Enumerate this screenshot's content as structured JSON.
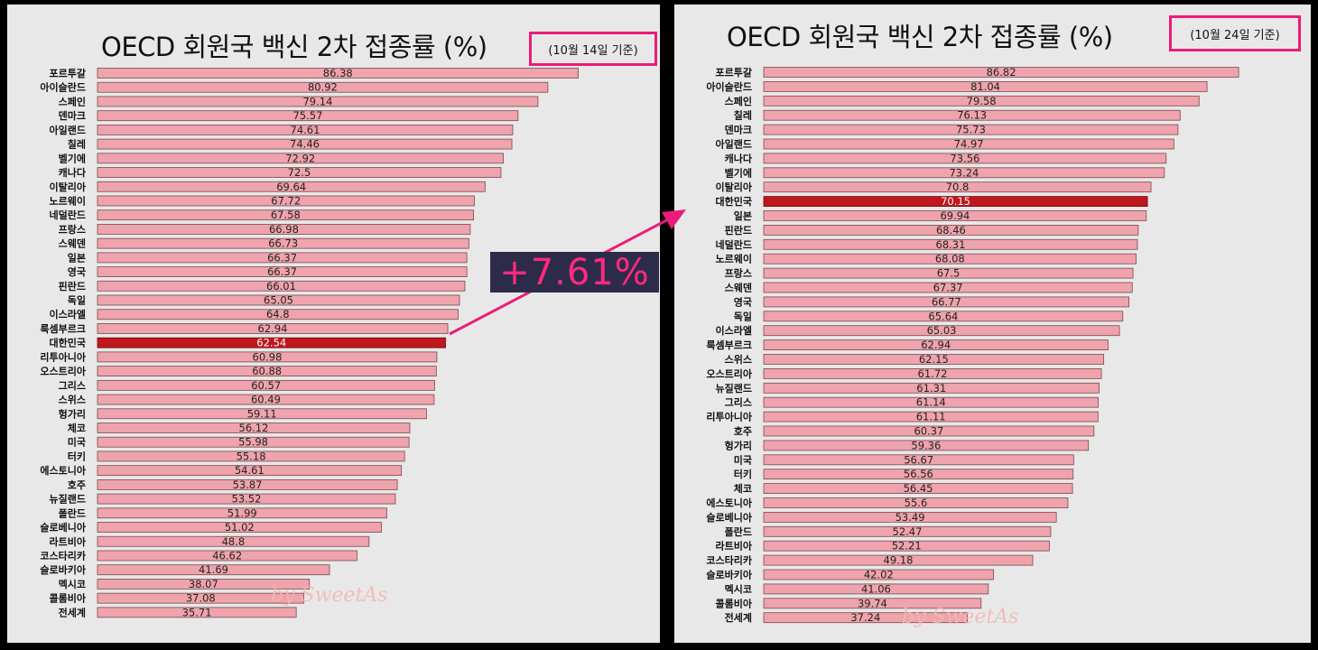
{
  "colors": {
    "bar": "#efa3ac",
    "bar_border": "#7a4a4f",
    "highlight": "#c0171c",
    "accent": "#ea1c78",
    "badge_bg": "#2d2b4a",
    "panel_bg": "#e8e8e8"
  },
  "difference_label": "+7.61%",
  "watermark": "by SweetAs",
  "chart_data": [
    {
      "type": "bar",
      "orientation": "horizontal",
      "title": "OECD 회원국 백신 2차 접종률 (%)",
      "date_label": "(10월 14일 기준)",
      "highlight_category": "대한민국",
      "xlim": [
        0,
        100
      ],
      "grid": false,
      "categories": [
        "포르투갈",
        "아이슬란드",
        "스페인",
        "덴마크",
        "아일랜드",
        "칠레",
        "벨기에",
        "캐나다",
        "이탈리아",
        "노르웨이",
        "네덜란드",
        "프랑스",
        "스웨덴",
        "일본",
        "영국",
        "핀란드",
        "독일",
        "이스라엘",
        "룩셈부르크",
        "대한민국",
        "리투아니아",
        "오스트리아",
        "그리스",
        "스위스",
        "헝가리",
        "체코",
        "미국",
        "터키",
        "에스토니아",
        "호주",
        "뉴질랜드",
        "폴란드",
        "슬로베니아",
        "라트비아",
        "코스타리카",
        "슬로바키아",
        "멕시코",
        "콜롬비아",
        "전세계"
      ],
      "values": [
        86.38,
        80.92,
        79.14,
        75.57,
        74.61,
        74.46,
        72.92,
        72.5,
        69.64,
        67.72,
        67.58,
        66.98,
        66.73,
        66.37,
        66.37,
        66.01,
        65.05,
        64.8,
        62.94,
        62.54,
        60.98,
        60.88,
        60.57,
        60.49,
        59.11,
        56.12,
        55.98,
        55.18,
        54.61,
        53.87,
        53.52,
        51.99,
        51.02,
        48.8,
        46.62,
        41.69,
        38.07,
        37.08,
        35.71
      ]
    },
    {
      "type": "bar",
      "orientation": "horizontal",
      "title": "OECD 회원국 백신 2차 접종률 (%)",
      "date_label": "(10월 24일 기준)",
      "highlight_category": "대한민국",
      "xlim": [
        0,
        100
      ],
      "grid": false,
      "categories": [
        "포르투갈",
        "아이슬란드",
        "스페인",
        "칠레",
        "덴마크",
        "아일랜드",
        "캐나다",
        "벨기에",
        "이탈리아",
        "대한민국",
        "일본",
        "핀란드",
        "네덜란드",
        "노르웨이",
        "프랑스",
        "스웨덴",
        "영국",
        "독일",
        "이스라엘",
        "룩셈부르크",
        "스위스",
        "오스트리아",
        "뉴질랜드",
        "그리스",
        "리투아니아",
        "호주",
        "헝가리",
        "미국",
        "터키",
        "체코",
        "에스토니아",
        "슬로베니아",
        "폴란드",
        "라트비아",
        "코스타리카",
        "슬로바키아",
        "멕시코",
        "콜롬비아",
        "전세계"
      ],
      "values": [
        86.82,
        81.04,
        79.58,
        76.13,
        75.73,
        74.97,
        73.56,
        73.24,
        70.8,
        70.15,
        69.94,
        68.46,
        68.31,
        68.08,
        67.5,
        67.37,
        66.77,
        65.64,
        65.03,
        62.94,
        62.15,
        61.72,
        61.31,
        61.14,
        61.11,
        60.37,
        59.36,
        56.67,
        56.56,
        56.45,
        55.6,
        53.49,
        52.47,
        52.21,
        49.18,
        42.02,
        41.06,
        39.74,
        37.24
      ]
    }
  ]
}
